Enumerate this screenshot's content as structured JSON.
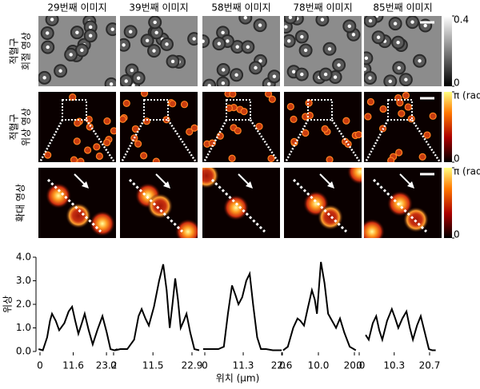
{
  "image_grid": {
    "columns": [
      "29번째 이미지",
      "39번째 이미지",
      "58번째 이미지",
      "78번째 이미지",
      "85번째 이미지"
    ],
    "rows": [
      {
        "label": [
          "적혈구",
          "회절 영상"
        ],
        "colorbar_ticks": [
          0,
          0.4
        ]
      },
      {
        "label": [
          "적혈구",
          "위상 영상"
        ],
        "colorbar_ticks": [
          0,
          {
            "value": 3.14159,
            "label": "π (rad)"
          }
        ]
      },
      {
        "label": [
          "확대 영상"
        ],
        "colorbar_ticks": [
          0,
          {
            "value": 3.14159,
            "label": "π (rad)"
          }
        ]
      }
    ]
  },
  "chart_data": {
    "type": "line",
    "xlabel": "위치 (μm)",
    "ylabel": "위상",
    "color": "#000000",
    "ylim": [
      0,
      4.0
    ],
    "yticks": [
      {
        "value": 0,
        "label": "0.0"
      },
      {
        "value": 1,
        "label": "1.0"
      },
      {
        "value": 2,
        "label": "2.0"
      },
      {
        "value": 3,
        "label": "3.0"
      },
      {
        "value": 4,
        "label": "4.0"
      }
    ],
    "panels": [
      {
        "xlim": [
          -1,
          27.5
        ],
        "xticks": [
          0,
          11.6,
          23.2
        ],
        "x": [
          -0.5,
          1,
          2.5,
          3.5,
          4.2,
          5.5,
          6.7,
          8.5,
          10,
          11.2,
          12.3,
          13.4,
          14.6,
          15.6,
          17,
          18.4,
          20,
          21.8,
          23.3,
          24.6,
          26,
          27
        ],
        "values": [
          0.1,
          0.05,
          0.6,
          1.3,
          1.6,
          1.3,
          0.9,
          1.2,
          1.7,
          1.9,
          1.3,
          0.75,
          1.2,
          1.6,
          0.9,
          0.3,
          0.9,
          1.5,
          0.8,
          0.1,
          0.05,
          0.1
        ]
      },
      {
        "xlim": [
          -1,
          25.5
        ],
        "xticks": [
          0,
          11.5,
          22.9
        ],
        "x": [
          0.5,
          2,
          4,
          6,
          7.3,
          8.2,
          9.3,
          10.3,
          11.8,
          13.3,
          14.5,
          15.5,
          16.4,
          17.2,
          18,
          18.8,
          19.6,
          20.5,
          21.3,
          22.4,
          23.6,
          25
        ],
        "values": [
          0.05,
          0.1,
          0.1,
          0.5,
          1.5,
          1.8,
          1.4,
          1.1,
          1.9,
          3.0,
          3.7,
          2.6,
          1.0,
          2.0,
          3.1,
          2.2,
          1.0,
          1.3,
          1.6,
          0.8,
          0.1,
          0.05
        ]
      },
      {
        "xlim": [
          -1,
          23.5
        ],
        "xticks": [
          0,
          11.3,
          22.6
        ],
        "x": [
          -0.5,
          2,
          4,
          5.6,
          6.8,
          8,
          9,
          9.9,
          11,
          12.2,
          13.2,
          14.2,
          15.4,
          16.5,
          18,
          20,
          22.6
        ],
        "values": [
          0.1,
          0.1,
          0.1,
          0.2,
          1.6,
          2.8,
          2.4,
          2.0,
          2.3,
          3.0,
          3.3,
          2.0,
          0.6,
          0.1,
          0.1,
          0.05,
          0.05
        ]
      },
      {
        "xlim": [
          -1,
          21
        ],
        "xticks": [
          0,
          {
            "value": 10,
            "label": "10.0"
          },
          {
            "value": 20,
            "label": "20.0"
          }
        ],
        "x": [
          0.2,
          1.5,
          3,
          4.2,
          5,
          6,
          7,
          8.2,
          9,
          9.6,
          10.7,
          11.7,
          12.7,
          13.8,
          14.9,
          16,
          17.2,
          18.7,
          20.4
        ],
        "values": [
          0.05,
          0.2,
          1.0,
          1.4,
          1.3,
          1.1,
          1.8,
          2.6,
          2.2,
          1.6,
          3.8,
          2.9,
          1.6,
          1.3,
          1.0,
          1.4,
          0.8,
          0.2,
          0.05
        ]
      },
      {
        "xlim": [
          -1,
          23
        ],
        "xticks": [
          0,
          10.3,
          20.7
        ],
        "x": [
          1.9,
          2.8,
          4,
          5,
          5.9,
          6.8,
          8.2,
          9.6,
          10.6,
          11.5,
          12.7,
          13.9,
          14.9,
          15.8,
          17,
          18.1,
          19.3,
          20.5,
          21.5,
          22.5
        ],
        "values": [
          0.7,
          0.5,
          1.2,
          1.5,
          0.9,
          0.5,
          1.3,
          1.8,
          1.4,
          1.0,
          1.4,
          1.7,
          1.0,
          0.5,
          1.1,
          1.5,
          0.8,
          0.1,
          0.05,
          0.05
        ]
      }
    ]
  }
}
